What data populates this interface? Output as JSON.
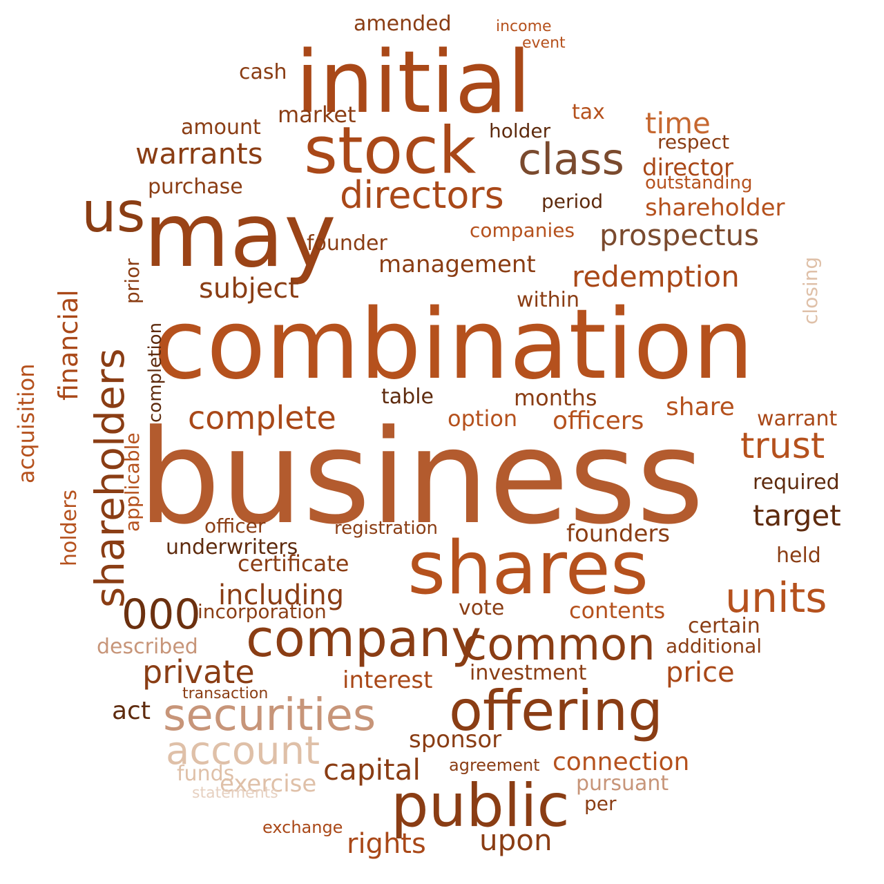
{
  "palette": {
    "darkest": "#5e2b0e",
    "dark": "#8a3d14",
    "mid": "#b5511d",
    "warm": "#c6672f",
    "light": "#d8955f",
    "pale": "#e6b895",
    "faint": "#efd3bd"
  },
  "words": [
    "business",
    "combination",
    "may",
    "initial",
    "shares",
    "stock",
    "public",
    "company",
    "offering",
    "securities",
    "common",
    "units",
    "us",
    "shareholders",
    "class",
    "directors",
    "trust",
    "account",
    "000",
    "target",
    "prospectus",
    "warrants",
    "complete",
    "private",
    "time",
    "redemption",
    "management",
    "capital",
    "upon",
    "including",
    "rights",
    "founders",
    "director",
    "connection",
    "officers",
    "sponsor",
    "price",
    "subject",
    "financial",
    "acquisition",
    "closing",
    "shareholder",
    "market",
    "amended",
    "tax",
    "founder",
    "holders",
    "described",
    "exercise",
    "funds",
    "contents",
    "share",
    "warrant",
    "option",
    "months",
    "investment",
    "certificate",
    "act",
    "purchase",
    "cash",
    "amount",
    "interest",
    "vote",
    "incorporation",
    "underwriters",
    "companies",
    "certain",
    "additional",
    "agreement",
    "pursuant",
    "held",
    "registration",
    "officer",
    "table",
    "period",
    "outstanding",
    "respect",
    "within",
    "applicable",
    "prior",
    "completion",
    "holder",
    "required",
    "per",
    "exchange",
    "transaction",
    "statements",
    "income",
    "event"
  ]
}
